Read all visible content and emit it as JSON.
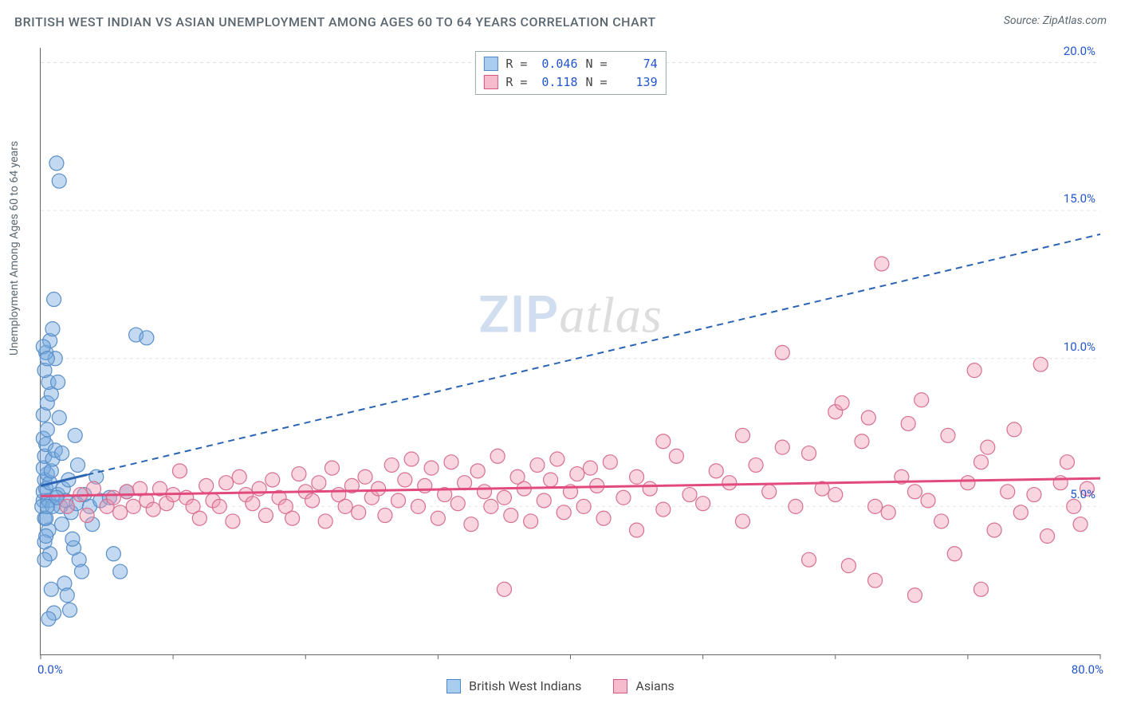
{
  "title": "BRITISH WEST INDIAN VS ASIAN UNEMPLOYMENT AMONG AGES 60 TO 64 YEARS CORRELATION CHART",
  "source_label": "Source:",
  "source_value": "ZipAtlas.com",
  "y_axis_label": "Unemployment Among Ages 60 to 64 years",
  "watermark_a": "ZIP",
  "watermark_b": "atlas",
  "chart": {
    "type": "scatter",
    "xlim": [
      0,
      80
    ],
    "ylim": [
      0,
      20.5
    ],
    "x_ticks": [
      0,
      10,
      20,
      30,
      40,
      50,
      60,
      70,
      80
    ],
    "x_tick_labels_shown": {
      "0": "0.0%",
      "80": "80.0%"
    },
    "y_ticks": [
      5,
      10,
      15,
      20
    ],
    "y_tick_labels": {
      "5": "5.0%",
      "10": "10.0%",
      "15": "15.0%",
      "20": "20.0%"
    },
    "grid_color": "#e2e2e2",
    "grid_dash": "4,4",
    "background_color": "#ffffff",
    "axis_color": "#666666",
    "tick_label_color": "#2255cc",
    "marker_radius": 9,
    "marker_stroke_width": 1.2,
    "series": [
      {
        "name": "British West Indians",
        "fill": "rgba(120,170,225,0.45)",
        "stroke": "#5a8fc8",
        "swatch_fill": "#a9cdee",
        "swatch_border": "#4f86c6",
        "R": "0.046",
        "N": "74",
        "trend": {
          "x1": 0,
          "y1": 5.7,
          "x2": 80,
          "y2": 14.2,
          "solid_until_x": 3.5,
          "color": "#2a63b3",
          "width": 2,
          "dash": "8,6"
        },
        "points": [
          [
            0.2,
            5.2
          ],
          [
            0.2,
            5.5
          ],
          [
            0.3,
            5.9
          ],
          [
            0.1,
            5.0
          ],
          [
            0.4,
            5.6
          ],
          [
            0.5,
            6.1
          ],
          [
            0.3,
            4.6
          ],
          [
            0.6,
            5.2
          ],
          [
            0.2,
            6.3
          ],
          [
            0.7,
            5.8
          ],
          [
            0.3,
            6.7
          ],
          [
            0.8,
            6.2
          ],
          [
            0.4,
            7.1
          ],
          [
            0.9,
            6.6
          ],
          [
            0.2,
            7.3
          ],
          [
            1.1,
            6.9
          ],
          [
            0.5,
            7.6
          ],
          [
            1.3,
            5.4
          ],
          [
            0.6,
            4.2
          ],
          [
            1.5,
            5.0
          ],
          [
            0.3,
            3.8
          ],
          [
            1.7,
            5.6
          ],
          [
            0.7,
            3.4
          ],
          [
            1.9,
            5.2
          ],
          [
            0.9,
            5.0
          ],
          [
            2.1,
            5.9
          ],
          [
            0.4,
            4.6
          ],
          [
            2.3,
            4.8
          ],
          [
            1.2,
            5.3
          ],
          [
            2.5,
            3.6
          ],
          [
            0.2,
            8.1
          ],
          [
            2.7,
            5.1
          ],
          [
            0.5,
            8.5
          ],
          [
            2.9,
            3.2
          ],
          [
            1.4,
            8.0
          ],
          [
            3.1,
            2.8
          ],
          [
            0.8,
            8.8
          ],
          [
            0.6,
            9.2
          ],
          [
            1.6,
            4.4
          ],
          [
            0.3,
            9.6
          ],
          [
            1.1,
            10.0
          ],
          [
            0.4,
            10.2
          ],
          [
            0.7,
            10.6
          ],
          [
            1.8,
            2.4
          ],
          [
            0.2,
            10.4
          ],
          [
            2.0,
            2.0
          ],
          [
            0.5,
            10.0
          ],
          [
            2.2,
            1.5
          ],
          [
            1.3,
            9.2
          ],
          [
            2.4,
            3.9
          ],
          [
            0.9,
            11.0
          ],
          [
            3.3,
            5.4
          ],
          [
            3.7,
            5.0
          ],
          [
            4.5,
            5.2
          ],
          [
            5.2,
            5.3
          ],
          [
            6.0,
            2.8
          ],
          [
            6.5,
            5.5
          ],
          [
            5.5,
            3.4
          ],
          [
            7.2,
            10.8
          ],
          [
            8.0,
            10.7
          ],
          [
            2.6,
            7.4
          ],
          [
            1.0,
            12.0
          ],
          [
            1.2,
            16.6
          ],
          [
            1.4,
            16.0
          ],
          [
            3.9,
            4.4
          ],
          [
            4.2,
            6.0
          ],
          [
            0.8,
            2.2
          ],
          [
            1.0,
            1.4
          ],
          [
            0.6,
            1.2
          ],
          [
            2.8,
            6.4
          ],
          [
            0.4,
            4.0
          ],
          [
            0.3,
            3.2
          ],
          [
            1.6,
            6.8
          ],
          [
            0.5,
            5.0
          ]
        ]
      },
      {
        "name": "Asians",
        "fill": "rgba(240,150,175,0.40)",
        "stroke": "#d76f91",
        "swatch_fill": "#f6bccd",
        "swatch_border": "#d9567f",
        "R": "0.118",
        "N": "139",
        "trend": {
          "x1": 0,
          "y1": 5.35,
          "x2": 80,
          "y2": 5.95,
          "solid_until_x": 80,
          "color": "#e24a7e",
          "width": 3,
          "dash": ""
        },
        "points": [
          [
            2,
            5.0
          ],
          [
            3,
            5.4
          ],
          [
            3.5,
            4.7
          ],
          [
            4,
            5.6
          ],
          [
            5,
            5.0
          ],
          [
            5.5,
            5.3
          ],
          [
            6,
            4.8
          ],
          [
            6.5,
            5.5
          ],
          [
            7,
            5.0
          ],
          [
            7.5,
            5.6
          ],
          [
            8,
            5.2
          ],
          [
            8.5,
            4.9
          ],
          [
            9,
            5.6
          ],
          [
            9.5,
            5.1
          ],
          [
            10,
            5.4
          ],
          [
            10.5,
            6.2
          ],
          [
            11,
            5.3
          ],
          [
            11.5,
            5.0
          ],
          [
            12,
            4.6
          ],
          [
            12.5,
            5.7
          ],
          [
            13,
            5.2
          ],
          [
            13.5,
            5.0
          ],
          [
            14,
            5.8
          ],
          [
            14.5,
            4.5
          ],
          [
            15,
            6.0
          ],
          [
            15.5,
            5.4
          ],
          [
            16,
            5.1
          ],
          [
            16.5,
            5.6
          ],
          [
            17,
            4.7
          ],
          [
            17.5,
            5.9
          ],
          [
            18,
            5.3
          ],
          [
            18.5,
            5.0
          ],
          [
            19,
            4.6
          ],
          [
            19.5,
            6.1
          ],
          [
            20,
            5.5
          ],
          [
            20.5,
            5.2
          ],
          [
            21,
            5.8
          ],
          [
            21.5,
            4.5
          ],
          [
            22,
            6.3
          ],
          [
            22.5,
            5.4
          ],
          [
            23,
            5.0
          ],
          [
            23.5,
            5.7
          ],
          [
            24,
            4.8
          ],
          [
            24.5,
            6.0
          ],
          [
            25,
            5.3
          ],
          [
            25.5,
            5.6
          ],
          [
            26,
            4.7
          ],
          [
            26.5,
            6.4
          ],
          [
            27,
            5.2
          ],
          [
            27.5,
            5.9
          ],
          [
            28,
            6.6
          ],
          [
            28.5,
            5.0
          ],
          [
            29,
            5.7
          ],
          [
            29.5,
            6.3
          ],
          [
            30,
            4.6
          ],
          [
            30.5,
            5.4
          ],
          [
            31,
            6.5
          ],
          [
            31.5,
            5.1
          ],
          [
            32,
            5.8
          ],
          [
            32.5,
            4.4
          ],
          [
            33,
            6.2
          ],
          [
            33.5,
            5.5
          ],
          [
            34,
            5.0
          ],
          [
            34.5,
            6.7
          ],
          [
            35,
            5.3
          ],
          [
            35.5,
            4.7
          ],
          [
            36,
            6.0
          ],
          [
            36.5,
            5.6
          ],
          [
            37,
            4.5
          ],
          [
            37.5,
            6.4
          ],
          [
            38,
            5.2
          ],
          [
            38.5,
            5.9
          ],
          [
            39,
            6.6
          ],
          [
            39.5,
            4.8
          ],
          [
            40,
            5.5
          ],
          [
            40.5,
            6.1
          ],
          [
            41,
            5.0
          ],
          [
            41.5,
            6.3
          ],
          [
            42,
            5.7
          ],
          [
            42.5,
            4.6
          ],
          [
            43,
            6.5
          ],
          [
            44,
            5.3
          ],
          [
            45,
            6.0
          ],
          [
            46,
            5.6
          ],
          [
            47,
            4.9
          ],
          [
            48,
            6.7
          ],
          [
            49,
            5.4
          ],
          [
            50,
            5.1
          ],
          [
            51,
            6.2
          ],
          [
            52,
            5.8
          ],
          [
            53,
            4.5
          ],
          [
            54,
            6.4
          ],
          [
            55,
            5.5
          ],
          [
            35,
            2.2
          ],
          [
            56,
            7.0
          ],
          [
            57,
            5.0
          ],
          [
            58,
            6.8
          ],
          [
            59,
            5.6
          ],
          [
            60,
            8.2
          ],
          [
            60.5,
            8.5
          ],
          [
            61,
            3.0
          ],
          [
            62,
            7.2
          ],
          [
            62.5,
            8.0
          ],
          [
            63,
            2.5
          ],
          [
            63.5,
            13.2
          ],
          [
            64,
            4.8
          ],
          [
            65,
            6.0
          ],
          [
            65.5,
            7.8
          ],
          [
            66,
            2.0
          ],
          [
            66.5,
            8.6
          ],
          [
            67,
            5.2
          ],
          [
            68,
            4.5
          ],
          [
            68.5,
            7.4
          ],
          [
            69,
            3.4
          ],
          [
            70,
            5.8
          ],
          [
            70.5,
            9.6
          ],
          [
            71,
            6.5
          ],
          [
            71.5,
            7.0
          ],
          [
            72,
            4.2
          ],
          [
            73,
            5.5
          ],
          [
            73.5,
            7.6
          ],
          [
            74,
            4.8
          ],
          [
            75,
            5.4
          ],
          [
            75.5,
            9.8
          ],
          [
            76,
            4.0
          ],
          [
            77,
            5.8
          ],
          [
            77.5,
            6.5
          ],
          [
            78,
            5.0
          ],
          [
            78.5,
            4.4
          ],
          [
            79,
            5.6
          ],
          [
            47,
            7.2
          ],
          [
            53,
            7.4
          ],
          [
            56,
            10.2
          ],
          [
            58,
            3.2
          ],
          [
            60,
            5.4
          ],
          [
            45,
            4.2
          ],
          [
            71,
            2.2
          ],
          [
            66,
            5.5
          ],
          [
            63,
            5.0
          ]
        ]
      }
    ]
  },
  "stats_legend": {
    "r_label": "R =",
    "n_label": "N ="
  },
  "bottom_legend_items": [
    "British West Indians",
    "Asians"
  ]
}
